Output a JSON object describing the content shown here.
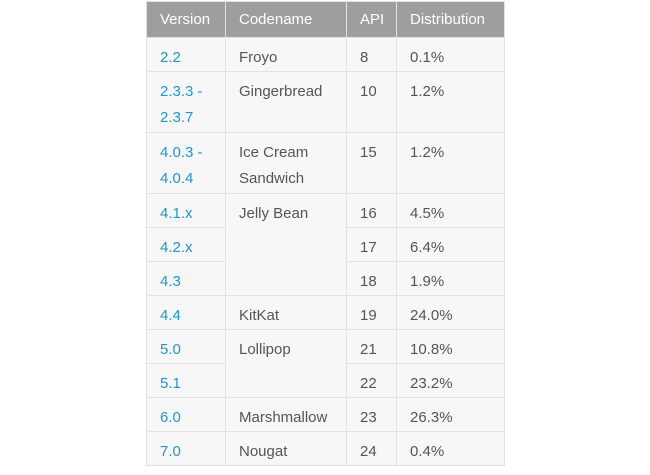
{
  "table": {
    "headers": [
      "Version",
      "Codename",
      "API",
      "Distribution"
    ],
    "rows": [
      {
        "version": "2.2",
        "codename": "Froyo",
        "api": "8",
        "distribution": "0.1%"
      },
      {
        "version": "2.3.3 - 2.3.7",
        "codename": "Gingerbread",
        "api": "10",
        "distribution": "1.2%"
      },
      {
        "version": "4.0.3 - 4.0.4",
        "codename": "Ice Cream Sandwich",
        "api": "15",
        "distribution": "1.2%"
      },
      {
        "version": "4.1.x",
        "codename": "Jelly Bean",
        "api": "16",
        "distribution": "4.5%"
      },
      {
        "version": "4.2.x",
        "codename": "",
        "api": "17",
        "distribution": "6.4%"
      },
      {
        "version": "4.3",
        "codename": "",
        "api": "18",
        "distribution": "1.9%"
      },
      {
        "version": "4.4",
        "codename": "KitKat",
        "api": "19",
        "distribution": "24.0%"
      },
      {
        "version": "5.0",
        "codename": "Lollipop",
        "api": "21",
        "distribution": "10.8%"
      },
      {
        "version": "5.1",
        "codename": "",
        "api": "22",
        "distribution": "23.2%"
      },
      {
        "version": "6.0",
        "codename": "Marshmallow",
        "api": "23",
        "distribution": "26.3%"
      },
      {
        "version": "7.0",
        "codename": "Nougat",
        "api": "24",
        "distribution": "0.4%"
      }
    ]
  }
}
